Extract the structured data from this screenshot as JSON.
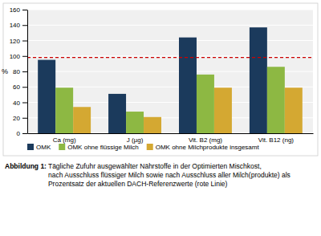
{
  "chart_data": {
    "type": "bar",
    "categories": [
      "Ca (mg)",
      "J (µg)",
      "Vit. B2 (mg)",
      "Vit. B12 (ng)"
    ],
    "series": [
      {
        "name": "OMK",
        "color": "#1b3a5c",
        "values": [
          95,
          51,
          124,
          137
        ]
      },
      {
        "name": "OMK ohne flüssige Milch",
        "color": "#8db843",
        "values": [
          59,
          28,
          76,
          86
        ]
      },
      {
        "name": "OMK ohne Milchprodukte insgesamt",
        "color": "#d4a832",
        "values": [
          34,
          21,
          59,
          59
        ]
      }
    ],
    "ylabel": "%",
    "ylim": [
      0,
      160
    ],
    "yticks": [
      0,
      20,
      40,
      60,
      80,
      100,
      120,
      140,
      160
    ],
    "grid": true,
    "legend": "bottom",
    "reference_line": {
      "value": 98,
      "color": "#cc0000",
      "line_style": "dashed"
    },
    "caption_label": "Abbildung 1:",
    "caption": " Tägliche Zufuhr ausgewählter Nährstoffe in der Optimierten Mischkost,\nnach Ausschluss flüssiger Milch sowie nach Ausschluss aller Milch(produkte) als\nProzentsatz der aktuellen DACH-Referenzwerte (rote Linie)"
  }
}
